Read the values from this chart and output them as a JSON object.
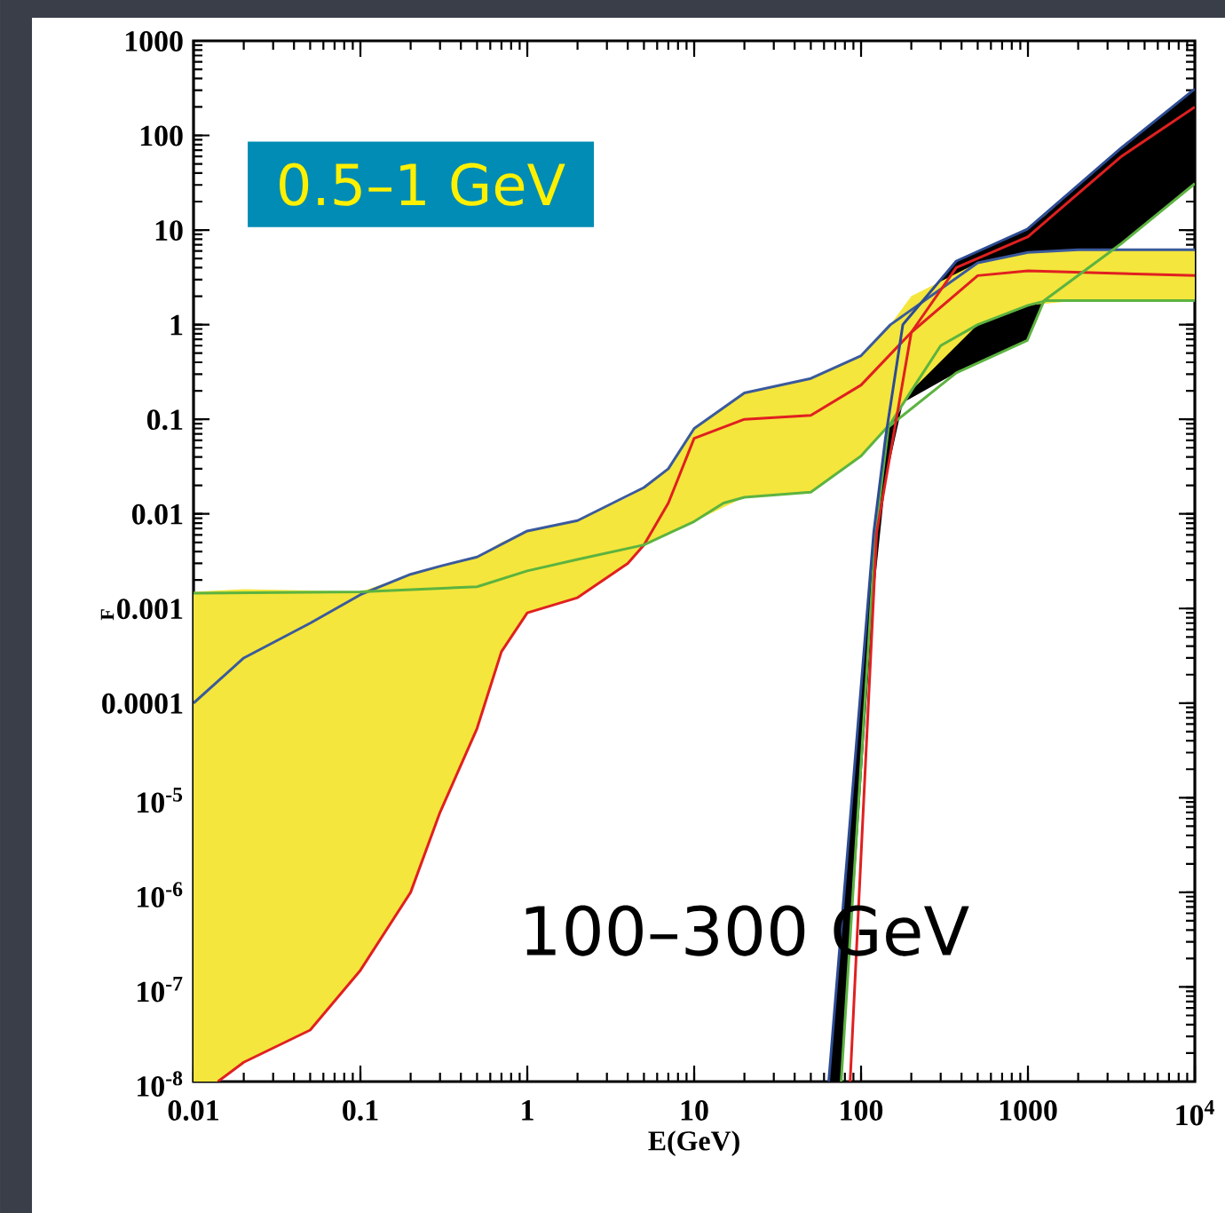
{
  "chart_data": {
    "type": "line",
    "xlabel": "E(GeV)",
    "ylabel": "F",
    "log": "xy",
    "xlim": [
      0.01,
      10000
    ],
    "ylim": [
      1e-08,
      1000
    ],
    "xticks": [
      0.01,
      0.1,
      1,
      10,
      100,
      1000,
      {
        "value": 10000,
        "label": "10$^{4}$"
      }
    ],
    "yticks": [
      {
        "value": 1e-08,
        "label": "10$^{-8}$"
      },
      {
        "value": 1e-07,
        "label": "10$^{-7}$"
      },
      {
        "value": 1e-06,
        "label": "10$^{-6}$"
      },
      {
        "value": 1e-05,
        "label": "10$^{-5}$"
      },
      0.0001,
      0.001,
      0.01,
      0.1,
      1,
      10,
      100,
      1000
    ],
    "annotations": [
      "0.5–1 GeV",
      "100–300 GeV"
    ],
    "series": [
      {
        "color": "#000000",
        "x": [
          64,
          76,
          119,
          140,
          178,
          372,
          990,
          1250,
          3630,
          10000
        ],
        "values": [
          null,
          null,
          null,
          null,
          null,
          null,
          null,
          null,
          null,
          null
        ],
        "upper": [
          1e-08,
          4e-07,
          0.0063,
          0.063,
          1.0,
          4.7,
          10.2,
          14,
          74,
          310
        ],
        "lower": [
          1e-08,
          1e-08,
          0.0014,
          0.022,
          0.15,
          0.31,
          0.68,
          1.8,
          7.2,
          31
        ]
      },
      {
        "color": "#f4e63c",
        "x": [
          0.01,
          0.014,
          0.02,
          0.05,
          0.1,
          0.2,
          0.3,
          0.5,
          0.7,
          1,
          2,
          4,
          5,
          7,
          10,
          20,
          50,
          100,
          150,
          200,
          500,
          1000,
          2000,
          10000
        ],
        "values": [
          null,
          null,
          null,
          null,
          null,
          null,
          null,
          null,
          null,
          null,
          null,
          null,
          null,
          null,
          null,
          null,
          null,
          null,
          null,
          null,
          null,
          null,
          null,
          null
        ],
        "upper": [
          0.0015,
          0.00155,
          0.0016,
          0.00155,
          0.0015,
          0.0023,
          0.0028,
          0.0035,
          0.005,
          0.0066,
          0.0085,
          0.015,
          0.019,
          0.03,
          0.08,
          0.19,
          0.27,
          0.47,
          1.0,
          2.0,
          4.5,
          5.8,
          6.2,
          6.2
        ],
        "lower": [
          1e-08,
          1e-08,
          1.6e-08,
          3.5e-08,
          1.5e-07,
          1e-06,
          7e-06,
          5.4e-05,
          0.00035,
          0.0009,
          0.0013,
          0.003,
          0.0047,
          0.006,
          0.0083,
          0.015,
          0.017,
          0.041,
          0.09,
          0.2,
          1.0,
          1.6,
          1.8,
          1.8
        ]
      },
      {
        "color": "#3b5a9c",
        "x": [
          0.01,
          0.02,
          0.05,
          0.1,
          0.2,
          0.3,
          0.5,
          1,
          2,
          5,
          7,
          10,
          20,
          50,
          100,
          150,
          500,
          1000,
          2000,
          10000
        ],
        "values": [
          0.0001,
          0.0003,
          0.0007,
          0.0014,
          0.0023,
          0.0028,
          0.0035,
          0.0066,
          0.0085,
          0.019,
          0.03,
          0.08,
          0.19,
          0.27,
          0.47,
          1.0,
          4.5,
          5.8,
          6.2,
          6.2
        ]
      },
      {
        "color": "#e02020",
        "x": [
          0.014,
          0.02,
          0.05,
          0.1,
          0.2,
          0.3,
          0.5,
          0.7,
          1,
          2,
          4,
          5,
          7,
          10,
          20,
          50,
          100,
          200,
          500,
          1000,
          10000
        ],
        "values": [
          1e-08,
          1.6e-08,
          3.5e-08,
          1.5e-07,
          1e-06,
          7e-06,
          5.4e-05,
          0.00035,
          0.0009,
          0.0013,
          0.003,
          0.0047,
          0.013,
          0.063,
          0.1,
          0.11,
          0.23,
          0.83,
          3.3,
          3.7,
          3.3
        ]
      },
      {
        "color": "#5cb340",
        "x": [
          0.01,
          0.1,
          0.5,
          1,
          2,
          5,
          10,
          15,
          20,
          50,
          100,
          150,
          200,
          300,
          500,
          1000,
          1300,
          10000
        ],
        "values": [
          0.00145,
          0.0015,
          0.0017,
          0.0025,
          0.0033,
          0.0047,
          0.0083,
          0.013,
          0.015,
          0.017,
          0.041,
          0.09,
          0.2,
          0.6,
          1.0,
          1.6,
          1.8,
          1.8
        ]
      },
      {
        "color": "#5cb340",
        "x": [
          76,
          122,
          146,
          372,
          990,
          1250,
          3630,
          10000
        ],
        "values": [
          1e-08,
          0.0063,
          0.083,
          0.31,
          0.68,
          1.8,
          7.2,
          31
        ]
      },
      {
        "color": "#e02020",
        "x": [
          86,
          124,
          200,
          372,
          1000,
          3630,
          10000
        ],
        "values": [
          1e-08,
          0.0063,
          0.83,
          4.0,
          8.5,
          60,
          200
        ]
      },
      {
        "color": "#2d4b94",
        "x": [
          64,
          119,
          140,
          178,
          372,
          990,
          3630,
          10000
        ],
        "values": [
          1e-08,
          0.0063,
          0.063,
          1.0,
          4.7,
          10.2,
          74,
          310
        ]
      }
    ]
  }
}
